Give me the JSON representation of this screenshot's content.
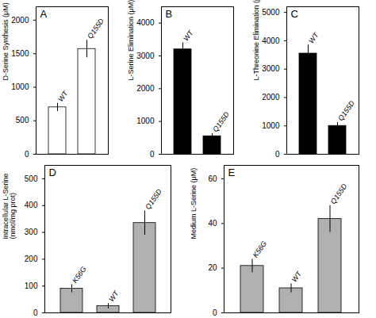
{
  "chart_data": [
    {
      "type": "bar",
      "title": "A",
      "categories": [
        "WT",
        "Q155D"
      ],
      "values": [
        700,
        1570
      ],
      "errors": [
        60,
        130
      ],
      "color": "white",
      "ylabel": "D-Serine Synthesis (μM)",
      "ylim": [
        0,
        2200
      ],
      "yticks": [
        0,
        500,
        1000,
        1500,
        2000
      ],
      "tick_labels": "y"
    },
    {
      "type": "bar",
      "title": "B",
      "categories": [
        "WT",
        "Q155D"
      ],
      "values": [
        3200,
        550
      ],
      "errors": [
        200,
        80
      ],
      "color": "black",
      "ylabel": "L-Serine Elimination (μM)",
      "ylim": [
        0,
        4500
      ],
      "yticks": [
        0,
        1000,
        2000,
        3000,
        4000
      ],
      "tick_labels": "y"
    },
    {
      "type": "bar",
      "title": "C",
      "categories": [
        "WT",
        "Q155D"
      ],
      "values": [
        3550,
        1000
      ],
      "errors": [
        300,
        120
      ],
      "color": "black",
      "ylabel": "L-Threonine Elimination (μM)",
      "ylim": [
        0,
        5200
      ],
      "yticks": [
        0,
        1000,
        2000,
        3000,
        4000,
        5000
      ],
      "tick_labels": "y"
    },
    {
      "type": "bar",
      "title": "D",
      "categories": [
        "K56G",
        "WT",
        "Q155D"
      ],
      "values": [
        90,
        25,
        335
      ],
      "errors": [
        15,
        10,
        45
      ],
      "color": "#b0b0b0",
      "ylabel": "Intracellular L-Serine\n(nmol/mg prot)",
      "ylim": [
        0,
        550
      ],
      "yticks": [
        0,
        100,
        200,
        300,
        400,
        500
      ],
      "tick_labels": "y"
    },
    {
      "type": "bar",
      "title": "E",
      "categories": [
        "K56G",
        "WT",
        "Q155D"
      ],
      "values": [
        21,
        11,
        42
      ],
      "errors": [
        3,
        2,
        6
      ],
      "color": "#b0b0b0",
      "ylabel": "Medium L-Serine (μM)",
      "ylim": [
        0,
        66
      ],
      "yticks": [
        0,
        20,
        40,
        60
      ],
      "tick_labels": "y"
    }
  ]
}
